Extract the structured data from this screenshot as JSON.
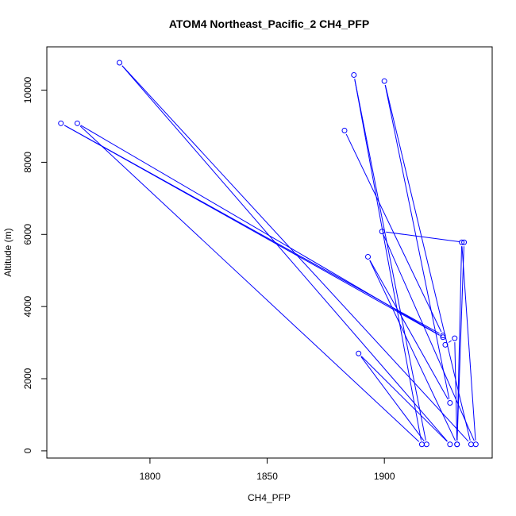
{
  "chart_data": {
    "type": "line",
    "title": "ATOM4 Northeast_Pacific_2 CH4_PFP",
    "xlabel": "CH4_PFP",
    "ylabel": "Altitude (m)",
    "xlim": [
      1756,
      1946
    ],
    "ylim": [
      -200,
      11200
    ],
    "x_ticks": [
      1800,
      1850,
      1900
    ],
    "y_ticks": [
      0,
      2000,
      4000,
      6000,
      8000,
      10000
    ],
    "grid": false,
    "colors": {
      "series": "#0000ff",
      "axes": "#000000",
      "background": "#ffffff"
    },
    "marker": "open-circle",
    "series": [
      {
        "points": [
          {
            "x": 1883,
            "y": 8880
          },
          {
            "x": 1925,
            "y": 3200
          },
          {
            "x": 1762,
            "y": 9080
          },
          {
            "x": 1925,
            "y": 3150
          },
          {
            "x": 1769,
            "y": 9080
          },
          {
            "x": 1916,
            "y": 180
          },
          {
            "x": 1887,
            "y": 10420
          },
          {
            "x": 1918,
            "y": 180
          },
          {
            "x": 1889,
            "y": 2700
          },
          {
            "x": 1928,
            "y": 180
          },
          {
            "x": 1787,
            "y": 10760
          },
          {
            "x": 1937,
            "y": 180
          },
          {
            "x": 1900,
            "y": 10250
          },
          {
            "x": 1928,
            "y": 1330
          },
          {
            "x": 1893,
            "y": 5380
          },
          {
            "x": 1931,
            "y": 180
          },
          {
            "x": 1934,
            "y": 5780
          },
          {
            "x": 1899,
            "y": 6080
          },
          {
            "x": 1939,
            "y": 180
          },
          {
            "x": 1933,
            "y": 5780
          },
          {
            "x": 1931,
            "y": 180
          },
          {
            "x": 1930,
            "y": 3120
          },
          {
            "x": 1926,
            "y": 2940
          }
        ]
      }
    ]
  }
}
